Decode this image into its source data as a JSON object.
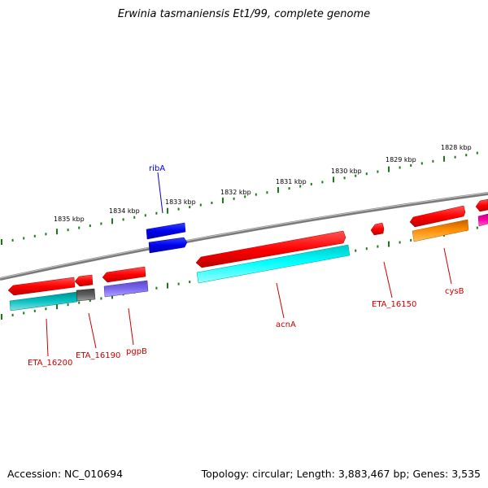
{
  "title": "Erwinia tasmaniensis Et1/99, complete genome",
  "accession_text": "Accession: NC_010694",
  "summary_text": "Topology: circular; Length: 3,883,467 bp; Genes: 3,535",
  "colors": {
    "backbone": "#888888",
    "tick": "#1a7a1a",
    "label_red": "#cc0000",
    "label_blue": "#0000cc",
    "gene_red": "#ff0000",
    "gene_blue": "#0000ee",
    "gene_cyan": "#00ffff",
    "gene_teal": "#00c0c0",
    "gene_gray": "#606060",
    "gene_purple": "#7b68ee",
    "gene_orange": "#ff8c00",
    "gene_magenta": "#ff00aa"
  },
  "scale_labels": [
    "1835 kbp",
    "1834 kbp",
    "1833 kbp",
    "1832 kbp",
    "1831 kbp",
    "1830 kbp",
    "1829 kbp",
    "1828 kbp"
  ],
  "gene_labels": {
    "ribA": "ribA",
    "acnA": "acnA",
    "eta16150": "ETA_16150",
    "cysB": "cysB",
    "eta16200": "ETA_16200",
    "eta16190": "ETA_16190",
    "pgpB": "pgpB"
  }
}
